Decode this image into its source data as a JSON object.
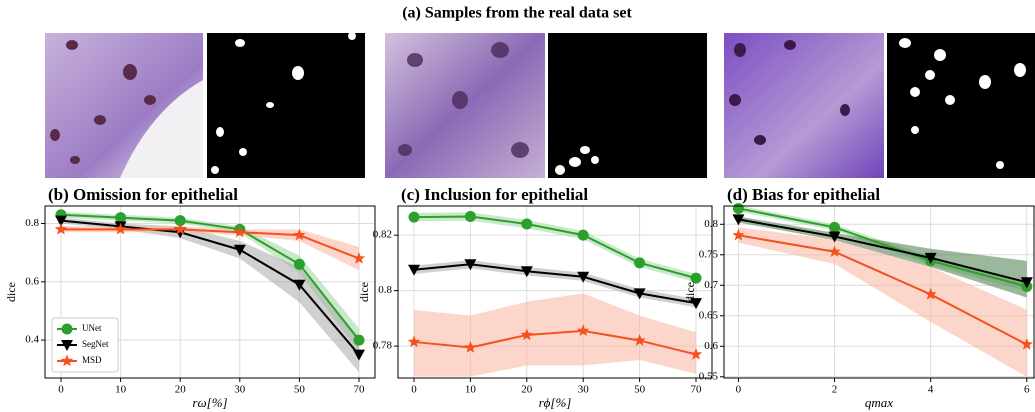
{
  "title": "(a) Samples from the real data set",
  "chart_data": [
    {
      "type": "line",
      "title": "(b) Omission for epithelial",
      "xlabel": "rω[%]",
      "ylabel": "dice",
      "categories": [
        "0",
        "10",
        "20",
        "30",
        "50",
        "70"
      ],
      "ylim": [
        0.27,
        0.86
      ],
      "yticks": [
        0.4,
        0.6,
        0.8
      ],
      "grid": true,
      "legend": "lower left",
      "series": [
        {
          "name": "UNet",
          "color": "#2ca02c",
          "band_color": "#9fd69f",
          "values": [
            0.83,
            0.82,
            0.81,
            0.78,
            0.66,
            0.4
          ],
          "lower": [
            0.82,
            0.81,
            0.8,
            0.77,
            0.63,
            0.36
          ],
          "upper": [
            0.84,
            0.83,
            0.82,
            0.79,
            0.69,
            0.44
          ]
        },
        {
          "name": "SegNet",
          "color": "#000000",
          "band_color": "#aaaaaa",
          "values": [
            0.81,
            0.79,
            0.77,
            0.71,
            0.59,
            0.35
          ],
          "lower": [
            0.8,
            0.78,
            0.75,
            0.68,
            0.53,
            0.29
          ],
          "upper": [
            0.82,
            0.8,
            0.79,
            0.74,
            0.65,
            0.41
          ]
        },
        {
          "name": "MSD",
          "color": "#f4511e",
          "band_color": "#f9b49e",
          "values": [
            0.78,
            0.78,
            0.78,
            0.77,
            0.76,
            0.68
          ],
          "lower": [
            0.77,
            0.77,
            0.77,
            0.76,
            0.74,
            0.64
          ],
          "upper": [
            0.79,
            0.79,
            0.79,
            0.78,
            0.78,
            0.72
          ]
        }
      ]
    },
    {
      "type": "line",
      "title": "(c) Inclusion for epithelial",
      "xlabel": "rϕ[%]",
      "ylabel": "dice",
      "categories": [
        "0",
        "10",
        "20",
        "30",
        "50",
        "70"
      ],
      "ylim": [
        0.7685,
        0.8305
      ],
      "yticks": [
        0.78,
        0.8,
        0.82
      ],
      "grid": true,
      "series": [
        {
          "name": "UNet",
          "color": "#2ca02c",
          "band_color": "#9fd69f",
          "values": [
            0.8265,
            0.8267,
            0.824,
            0.82,
            0.81,
            0.8045
          ],
          "lower": [
            0.825,
            0.8252,
            0.8225,
            0.8185,
            0.8085,
            0.803
          ],
          "upper": [
            0.828,
            0.8282,
            0.8255,
            0.8215,
            0.8115,
            0.806
          ]
        },
        {
          "name": "SegNet",
          "color": "#000000",
          "band_color": "#aaaaaa",
          "values": [
            0.8075,
            0.8095,
            0.807,
            0.805,
            0.799,
            0.7955
          ],
          "lower": [
            0.806,
            0.808,
            0.8055,
            0.8035,
            0.7975,
            0.794
          ],
          "upper": [
            0.809,
            0.811,
            0.8085,
            0.8065,
            0.8005,
            0.797
          ]
        },
        {
          "name": "MSD",
          "color": "#f4511e",
          "band_color": "#f9b49e",
          "values": [
            0.7815,
            0.7795,
            0.784,
            0.7855,
            0.782,
            0.777
          ],
          "lower": [
            0.769,
            0.769,
            0.773,
            0.773,
            0.775,
            0.77
          ],
          "upper": [
            0.793,
            0.791,
            0.796,
            0.799,
            0.791,
            0.785
          ]
        }
      ]
    },
    {
      "type": "line",
      "title": "(d) Bias for epithelial",
      "xlabel": "qmax",
      "ylabel": "dice",
      "x": [
        0,
        2,
        4,
        6
      ],
      "xlim": [
        -0.3,
        6.15
      ],
      "xticks": [
        0,
        2,
        4,
        6
      ],
      "ylim": [
        0.548,
        0.83
      ],
      "yticks": [
        0.55,
        0.6,
        0.65,
        0.7,
        0.75,
        0.8
      ],
      "grid": true,
      "series": [
        {
          "name": "UNet",
          "color": "#2ca02c",
          "band_color": "#9fd69f",
          "values": [
            0.826,
            0.795,
            0.74,
            0.698
          ],
          "lower": [
            0.821,
            0.79,
            0.733,
            0.69
          ],
          "upper": [
            0.831,
            0.8,
            0.747,
            0.705
          ]
        },
        {
          "name": "SegNet",
          "color": "#000000",
          "band_color": "#4a7d4a",
          "values": [
            0.808,
            0.78,
            0.745,
            0.705
          ],
          "lower": [
            0.803,
            0.774,
            0.73,
            0.68
          ],
          "upper": [
            0.813,
            0.786,
            0.76,
            0.74
          ]
        },
        {
          "name": "MSD",
          "color": "#f4511e",
          "band_color": "#f9b49e",
          "values": [
            0.782,
            0.755,
            0.685,
            0.603
          ],
          "lower": [
            0.77,
            0.735,
            0.64,
            0.55
          ],
          "upper": [
            0.795,
            0.775,
            0.73,
            0.66
          ]
        }
      ]
    }
  ]
}
